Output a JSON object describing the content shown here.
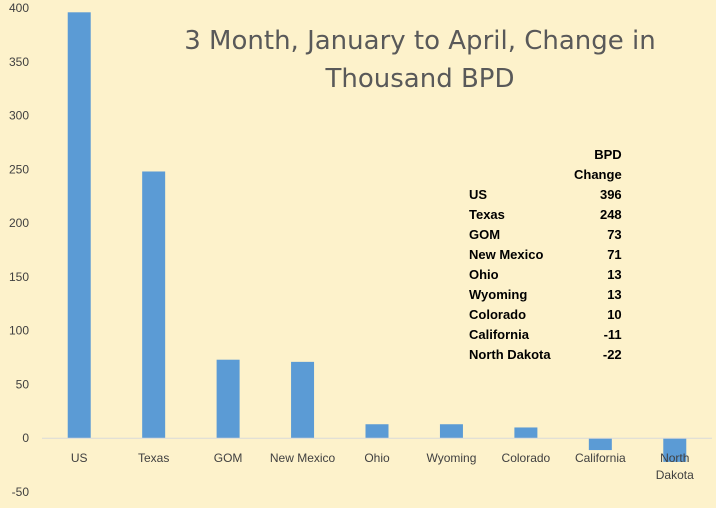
{
  "chart_data": {
    "type": "bar",
    "title_lines": [
      "3 Month, January to April, Change in",
      "Thousand BPD"
    ],
    "categories": [
      "US",
      "Texas",
      "GOM",
      "New Mexico",
      "Ohio",
      "Wyoming",
      "Colorado",
      "California",
      "North Dakota"
    ],
    "category_lines": [
      [
        "US"
      ],
      [
        "Texas"
      ],
      [
        "GOM"
      ],
      [
        "New Mexico"
      ],
      [
        "Ohio"
      ],
      [
        "Wyoming"
      ],
      [
        "Colorado"
      ],
      [
        "California"
      ],
      [
        "North",
        "Dakota"
      ]
    ],
    "values": [
      396,
      248,
      73,
      71,
      13,
      13,
      10,
      -11,
      -22
    ],
    "ylim": [
      -50,
      400
    ],
    "yticks": [
      -50,
      0,
      50,
      100,
      150,
      200,
      250,
      300,
      350,
      400
    ],
    "bar_color": "#5b9bd5",
    "grid": false,
    "legend": "none"
  },
  "table": {
    "header": "BPD Change",
    "rows": [
      {
        "name": "US",
        "value": "396"
      },
      {
        "name": "Texas",
        "value": "248"
      },
      {
        "name": "GOM",
        "value": "73"
      },
      {
        "name": "New Mexico",
        "value": "71"
      },
      {
        "name": "Ohio",
        "value": "13"
      },
      {
        "name": "Wyoming",
        "value": "13"
      },
      {
        "name": "Colorado",
        "value": "10"
      },
      {
        "name": "California",
        "value": "-11"
      },
      {
        "name": "North Dakota",
        "value": "-22"
      }
    ]
  }
}
